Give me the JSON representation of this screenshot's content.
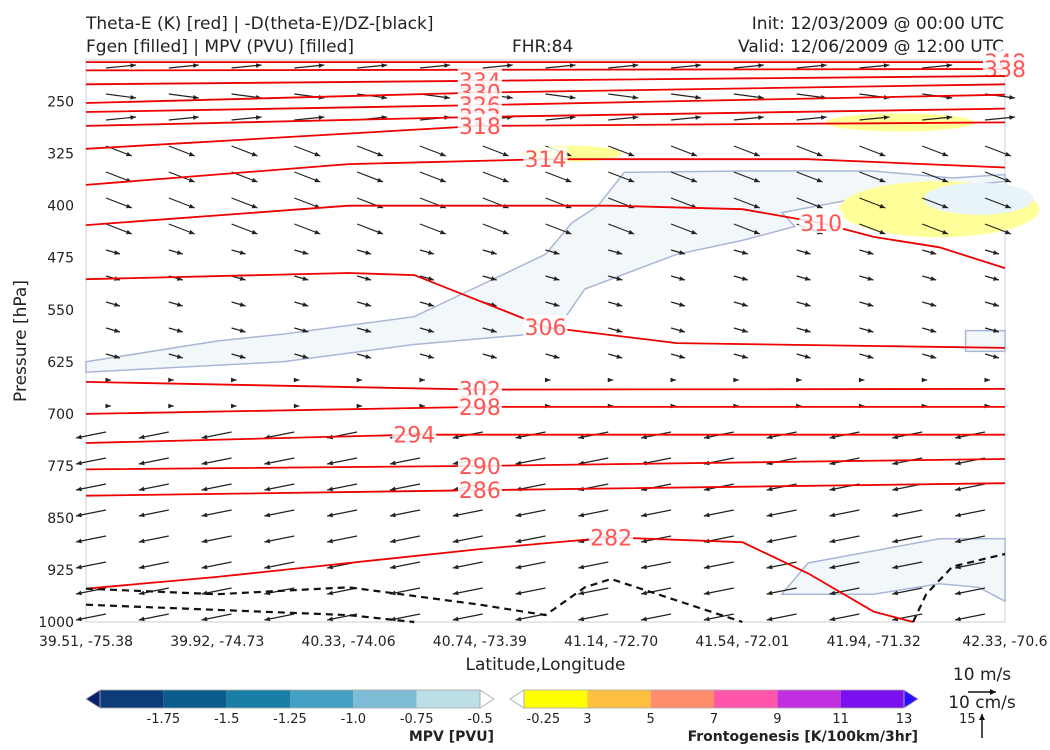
{
  "header": {
    "title_line1": "Theta-E (K) [red] | -D(theta-E)/DZ-[black]",
    "title_line2": "Fgen [filled] | MPV (PVU) [filled]",
    "fhr": "FHR:84",
    "init": "Init: 12/03/2009 @ 00:00 UTC",
    "valid": "Valid: 12/06/2009 @ 12:00 UTC"
  },
  "chart_data": {
    "type": "cross-section",
    "xlabel": "Latitude,Longitude",
    "ylabel": "Pressure [hPa]",
    "ylim": [
      1000,
      190
    ],
    "y_scale": "linear",
    "x_ticks": [
      "39.51, -75.38",
      "39.92, -74.73",
      "40.33, -74.06",
      "40.74, -73.39",
      "41.14, -72.70",
      "41.54, -72.01",
      "41.94, -71.32",
      "42.33, -70.6"
    ],
    "y_ticks": [
      250,
      325,
      400,
      475,
      550,
      625,
      700,
      775,
      850,
      925,
      1000
    ],
    "theta_e_contours": [
      {
        "label": "348",
        "points": [
          [
            0,
            193
          ],
          [
            7,
            193
          ]
        ]
      },
      {
        "label": "338",
        "points": [
          [
            0,
            205
          ],
          [
            7,
            203
          ]
        ]
      },
      {
        "label": "334",
        "points": [
          [
            0,
            225
          ],
          [
            3,
            220
          ],
          [
            7,
            213
          ]
        ]
      },
      {
        "label": "330",
        "points": [
          [
            0,
            252
          ],
          [
            3,
            237
          ],
          [
            7,
            225
          ]
        ]
      },
      {
        "label": "326",
        "points": [
          [
            0,
            265
          ],
          [
            3,
            255
          ],
          [
            7,
            240
          ]
        ]
      },
      {
        "label": "322",
        "points": [
          [
            0,
            285
          ],
          [
            3,
            272
          ],
          [
            7,
            260
          ]
        ]
      },
      {
        "label": "318",
        "points": [
          [
            0,
            318
          ],
          [
            3,
            285
          ],
          [
            7,
            280
          ]
        ]
      },
      {
        "label": "314",
        "points": [
          [
            0,
            370
          ],
          [
            2,
            340
          ],
          [
            3.5,
            333
          ],
          [
            5.5,
            333
          ],
          [
            7,
            345
          ]
        ]
      },
      {
        "label": "310",
        "points": [
          [
            0,
            428
          ],
          [
            2,
            400
          ],
          [
            4,
            400
          ],
          [
            5,
            405
          ],
          [
            5.6,
            425
          ],
          [
            6,
            445
          ],
          [
            6.5,
            460
          ],
          [
            7,
            490
          ]
        ]
      },
      {
        "label": "306",
        "points": [
          [
            0,
            506
          ],
          [
            2,
            497
          ],
          [
            2.5,
            500
          ],
          [
            3.5,
            575
          ],
          [
            4.5,
            598
          ],
          [
            7,
            605
          ]
        ]
      },
      {
        "label": "302",
        "points": [
          [
            0,
            654
          ],
          [
            3,
            665
          ],
          [
            7,
            664
          ]
        ]
      },
      {
        "label": "298",
        "points": [
          [
            0,
            700
          ],
          [
            3,
            690
          ],
          [
            7,
            690
          ]
        ]
      },
      {
        "label": "294",
        "points": [
          [
            0,
            742
          ],
          [
            2.5,
            730
          ],
          [
            7,
            730
          ]
        ]
      },
      {
        "label": "290",
        "points": [
          [
            0,
            780
          ],
          [
            3,
            775
          ],
          [
            7,
            765
          ]
        ]
      },
      {
        "label": "286",
        "points": [
          [
            0,
            818
          ],
          [
            3,
            810
          ],
          [
            7,
            800
          ]
        ]
      },
      {
        "label": "282",
        "points": [
          [
            0,
            952
          ],
          [
            1,
            935
          ],
          [
            2,
            915
          ],
          [
            3,
            895
          ],
          [
            4,
            878
          ],
          [
            5,
            885
          ],
          [
            5.5,
            930
          ],
          [
            6,
            985
          ],
          [
            6.3,
            1000
          ]
        ]
      }
    ],
    "stability_dashed": [
      [
        [
          0,
          952
        ],
        [
          1,
          960
        ],
        [
          2,
          950
        ],
        [
          3,
          975
        ],
        [
          3.5,
          990
        ],
        [
          3.8,
          950
        ],
        [
          4,
          938
        ],
        [
          5,
          1000
        ]
      ],
      [
        [
          0,
          975
        ],
        [
          2,
          990
        ],
        [
          2.5,
          1000
        ]
      ],
      [
        [
          6.3,
          1000
        ],
        [
          6.4,
          960
        ],
        [
          6.6,
          920
        ],
        [
          7,
          902
        ]
      ]
    ],
    "mpv_filled": {
      "level": "-0.25",
      "color": "#f2f8fa"
    },
    "fgen_filled": {
      "level": "3",
      "color": "#ffff99"
    },
    "mpv_colorbar": {
      "title": "MPV [PVU]",
      "ticks": [
        "-1.75",
        "-1.5",
        "-1.25",
        "-1.0",
        "-0.75",
        "-0.5",
        "-0.25"
      ],
      "colors": [
        "#08206e",
        "#0c3c7a",
        "#0a5c8c",
        "#1a7fa6",
        "#44a0c3",
        "#7dbcd4",
        "#bcdee6",
        "#ffffff"
      ]
    },
    "fgen_colorbar": {
      "title": "Frontogenesis [K/100km/3hr]",
      "ticks": [
        "3",
        "5",
        "7",
        "9",
        "11",
        "13",
        "15"
      ],
      "colors": [
        "#ffffff",
        "#ffff00",
        "#ffc040",
        "#ff8c6a",
        "#ff55aa",
        "#c030e0",
        "#7a10f0",
        "#2a10ff"
      ]
    },
    "vector_keys": [
      "10 m/s",
      "10 cm/s"
    ],
    "grid": false
  }
}
